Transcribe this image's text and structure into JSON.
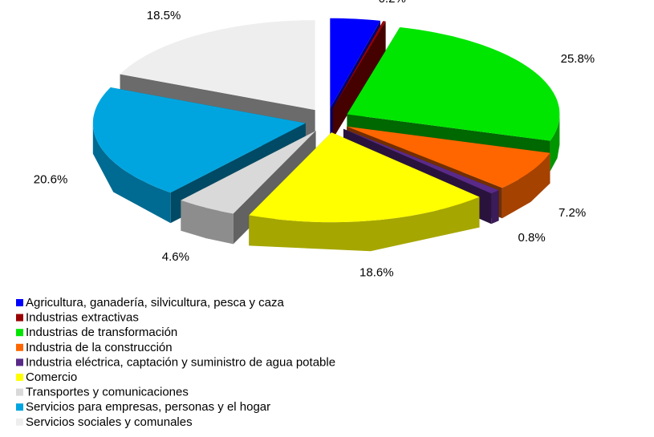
{
  "chart_data": {
    "type": "pie",
    "categories": [
      "Agricultura, ganadería,  silvicultura, pesca y caza",
      "Industrias extractivas",
      "Industrias de transformación",
      "Industria de la construcción",
      "Industria eléctrica, captación y suministro de agua potable",
      "Comercio",
      "Transportes y comunicaciones",
      "Servicios para empresas, personas y el hogar",
      "Servicios sociales y comunales"
    ],
    "values": [
      3.8,
      0.2,
      25.8,
      7.2,
      0.8,
      18.6,
      4.6,
      20.6,
      18.5
    ],
    "value_labels": [
      "3.8%",
      "0.2%",
      "25.8%",
      "7.2%",
      "0.8%",
      "18.6%",
      "4.6%",
      "20.6%",
      "18.5%"
    ],
    "colors": [
      "#0000ff",
      "#990000",
      "#00e600",
      "#ff6600",
      "#5a2a88",
      "#ffff00",
      "#d9d9d9",
      "#00a5e0",
      "#eeeeee"
    ]
  }
}
